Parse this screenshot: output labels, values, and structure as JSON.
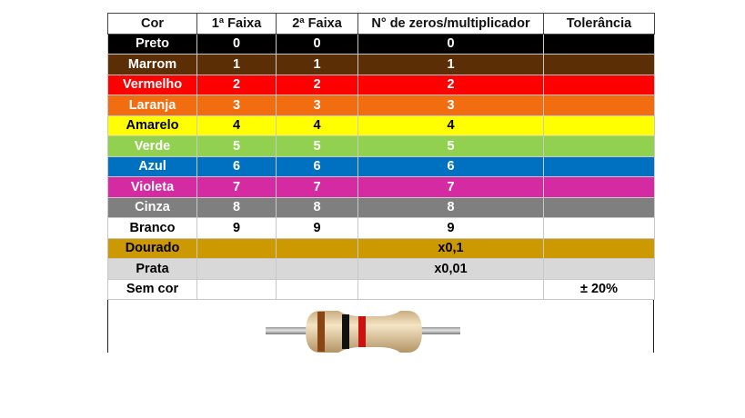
{
  "headers": [
    "Cor",
    "1ª Faixa",
    "2ª Faixa",
    "N° de zeros/multiplicador",
    "Tolerância"
  ],
  "rows": [
    {
      "color": "Preto",
      "band1": "0",
      "band2": "0",
      "multiplier": "0",
      "tolerance": "",
      "bg": "#000000",
      "fg": "#ffffff"
    },
    {
      "color": "Marrom",
      "band1": "1",
      "band2": "1",
      "multiplier": "1",
      "tolerance": "",
      "bg": "#5c2e06",
      "fg": "#ffffff"
    },
    {
      "color": "Vermelho",
      "band1": "2",
      "band2": "2",
      "multiplier": "2",
      "tolerance": "",
      "bg": "#ff0000",
      "fg": "#ffffff"
    },
    {
      "color": "Laranja",
      "band1": "3",
      "band2": "3",
      "multiplier": "3",
      "tolerance": "",
      "bg": "#f26d0f",
      "fg": "#ffffff"
    },
    {
      "color": "Amarelo",
      "band1": "4",
      "band2": "4",
      "multiplier": "4",
      "tolerance": "",
      "bg": "#ffff00",
      "fg": "#000000"
    },
    {
      "color": "Verde",
      "band1": "5",
      "band2": "5",
      "multiplier": "5",
      "tolerance": "",
      "bg": "#92d050",
      "fg": "#ffffff"
    },
    {
      "color": "Azul",
      "band1": "6",
      "band2": "6",
      "multiplier": "6",
      "tolerance": "",
      "bg": "#0070c0",
      "fg": "#ffffff"
    },
    {
      "color": "Violeta",
      "band1": "7",
      "band2": "7",
      "multiplier": "7",
      "tolerance": "",
      "bg": "#d52ba2",
      "fg": "#ffffff"
    },
    {
      "color": "Cinza",
      "band1": "8",
      "band2": "8",
      "multiplier": "8",
      "tolerance": "",
      "bg": "#7f7f7f",
      "fg": "#ffffff"
    },
    {
      "color": "Branco",
      "band1": "9",
      "band2": "9",
      "multiplier": "9",
      "tolerance": "",
      "bg": "#ffffff",
      "fg": "#000000"
    },
    {
      "color": "Dourado",
      "band1": "",
      "band2": "",
      "multiplier": "x0,1",
      "tolerance": "",
      "bg": "#cc9900",
      "fg": "#000000"
    },
    {
      "color": "Prata",
      "band1": "",
      "band2": "",
      "multiplier": "x0,01",
      "tolerance": "",
      "bg": "#d8d8d8",
      "fg": "#000000"
    },
    {
      "color": "Sem cor",
      "band1": "",
      "band2": "",
      "multiplier": "",
      "tolerance": "± 20%",
      "bg": "#ffffff",
      "fg": "#000000"
    }
  ],
  "resistor_image": {
    "icon": "resistor-icon",
    "body_color": "#e9d3ad",
    "bands": [
      "#8b4513",
      "#111111",
      "#cc1111"
    ]
  }
}
